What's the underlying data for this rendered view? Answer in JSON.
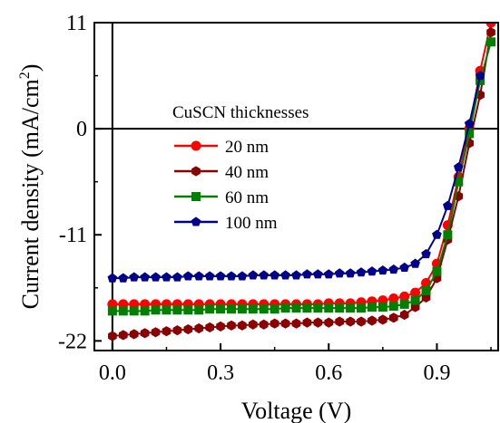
{
  "chart_data": {
    "type": "line",
    "title": "",
    "xlabel": "Voltage (V)",
    "ylabel_main": "Current density (mA/cm",
    "ylabel_sup": "2",
    "ylabel_close": ")",
    "xlim": [
      -0.05,
      1.07
    ],
    "ylim": [
      -23,
      11
    ],
    "x_ticks": [
      "0.0",
      "0.3",
      "0.6",
      "0.9"
    ],
    "y_ticks": [
      "11",
      "0",
      "-11",
      "-22"
    ],
    "legend_title": "CuSCN thicknesses",
    "legend_position": "upper-left inside plot",
    "x_zero_line": true,
    "y_zero_line": true,
    "series": [
      {
        "name": "20 nm",
        "color": "#ff0000",
        "marker": "circle",
        "x": [
          0,
          0.03,
          0.06,
          0.09,
          0.12,
          0.15,
          0.18,
          0.21,
          0.24,
          0.27,
          0.3,
          0.33,
          0.36,
          0.39,
          0.42,
          0.45,
          0.48,
          0.51,
          0.54,
          0.57,
          0.6,
          0.63,
          0.66,
          0.69,
          0.72,
          0.75,
          0.78,
          0.81,
          0.84,
          0.87,
          0.9,
          0.93,
          0.96,
          0.99,
          1.02,
          1.05
        ],
        "y": [
          -18.2,
          -18.2,
          -18.2,
          -18.2,
          -18.2,
          -18.2,
          -18.2,
          -18.2,
          -18.2,
          -18.2,
          -18.2,
          -18.2,
          -18.2,
          -18.2,
          -18.2,
          -18.2,
          -18.2,
          -18.2,
          -18.2,
          -18.2,
          -18.1,
          -18.1,
          -18.1,
          -18.0,
          -17.9,
          -17.8,
          -17.6,
          -17.4,
          -17.0,
          -16.0,
          -14.0,
          -10.0,
          -5.0,
          0.0,
          6.0,
          11.0
        ]
      },
      {
        "name": "40 nm",
        "color": "#8b0000",
        "marker": "hexagon",
        "x": [
          0,
          0.03,
          0.06,
          0.09,
          0.12,
          0.15,
          0.18,
          0.21,
          0.24,
          0.27,
          0.3,
          0.33,
          0.36,
          0.39,
          0.42,
          0.45,
          0.48,
          0.51,
          0.54,
          0.57,
          0.6,
          0.63,
          0.66,
          0.69,
          0.72,
          0.75,
          0.78,
          0.81,
          0.84,
          0.87,
          0.9,
          0.93,
          0.96,
          0.99,
          1.02,
          1.05
        ],
        "y": [
          -21.5,
          -21.4,
          -21.3,
          -21.2,
          -21.1,
          -21.0,
          -20.9,
          -20.8,
          -20.7,
          -20.6,
          -20.5,
          -20.4,
          -20.4,
          -20.3,
          -20.3,
          -20.2,
          -20.2,
          -20.2,
          -20.1,
          -20.1,
          -20.1,
          -20.0,
          -20.0,
          -20.0,
          -19.9,
          -19.8,
          -19.6,
          -19.3,
          -18.5,
          -17.5,
          -15.5,
          -11.5,
          -7.0,
          -1.5,
          3.5,
          10.0
        ]
      },
      {
        "name": "60 nm",
        "color": "#008000",
        "marker": "square",
        "x": [
          0,
          0.03,
          0.06,
          0.09,
          0.12,
          0.15,
          0.18,
          0.21,
          0.24,
          0.27,
          0.3,
          0.33,
          0.36,
          0.39,
          0.42,
          0.45,
          0.48,
          0.51,
          0.54,
          0.57,
          0.6,
          0.63,
          0.66,
          0.69,
          0.72,
          0.75,
          0.78,
          0.81,
          0.84,
          0.87,
          0.9,
          0.93,
          0.96,
          0.99,
          1.02,
          1.05
        ],
        "y": [
          -18.9,
          -18.9,
          -18.9,
          -18.9,
          -18.8,
          -18.8,
          -18.8,
          -18.8,
          -18.8,
          -18.7,
          -18.7,
          -18.7,
          -18.7,
          -18.7,
          -18.7,
          -18.7,
          -18.6,
          -18.6,
          -18.6,
          -18.6,
          -18.6,
          -18.6,
          -18.6,
          -18.6,
          -18.5,
          -18.5,
          -18.4,
          -18.2,
          -17.8,
          -16.8,
          -14.8,
          -11.0,
          -5.5,
          -0.5,
          5.0,
          9.0
        ]
      },
      {
        "name": "100 nm",
        "color": "#00008b",
        "marker": "pentagon",
        "x": [
          0,
          0.03,
          0.06,
          0.09,
          0.12,
          0.15,
          0.18,
          0.21,
          0.24,
          0.27,
          0.3,
          0.33,
          0.36,
          0.39,
          0.42,
          0.45,
          0.48,
          0.51,
          0.54,
          0.57,
          0.6,
          0.63,
          0.66,
          0.69,
          0.72,
          0.75,
          0.78,
          0.81,
          0.84,
          0.87,
          0.9,
          0.93,
          0.96,
          0.99,
          1.02
        ],
        "y": [
          -15.5,
          -15.5,
          -15.4,
          -15.4,
          -15.4,
          -15.4,
          -15.4,
          -15.3,
          -15.3,
          -15.3,
          -15.3,
          -15.3,
          -15.3,
          -15.2,
          -15.2,
          -15.2,
          -15.2,
          -15.2,
          -15.1,
          -15.1,
          -15.1,
          -15.0,
          -15.0,
          -14.9,
          -14.8,
          -14.7,
          -14.6,
          -14.4,
          -14.0,
          -13.0,
          -11.0,
          -8.0,
          -4.0,
          0.5,
          5.5
        ]
      }
    ]
  }
}
